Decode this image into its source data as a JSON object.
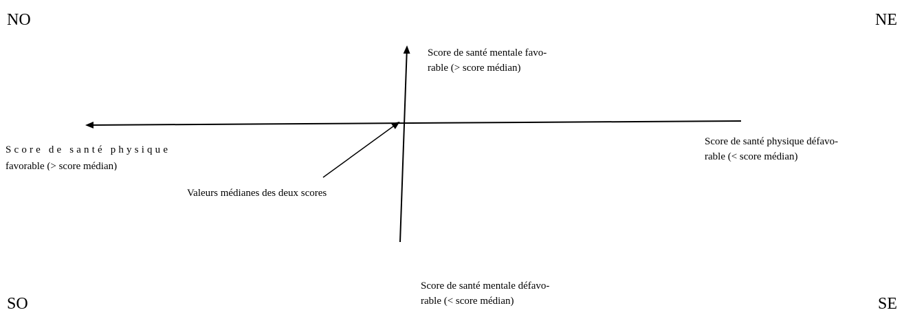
{
  "corners": {
    "nw": "NO",
    "ne": "NE",
    "sw": "SO",
    "se": "SE"
  },
  "labels": {
    "top": [
      "Score de santé mentale favo-",
      "rable (> score médian)"
    ],
    "bottom": [
      "Score de santé mentale défavo-",
      "rable (< score médian)"
    ],
    "left": [
      "Score de santé physique",
      "favorable (> score médian)"
    ],
    "right": [
      "Score de santé physique défavo-",
      "rable (< score médian)"
    ],
    "median": "Valeurs médianes des deux scores"
  }
}
